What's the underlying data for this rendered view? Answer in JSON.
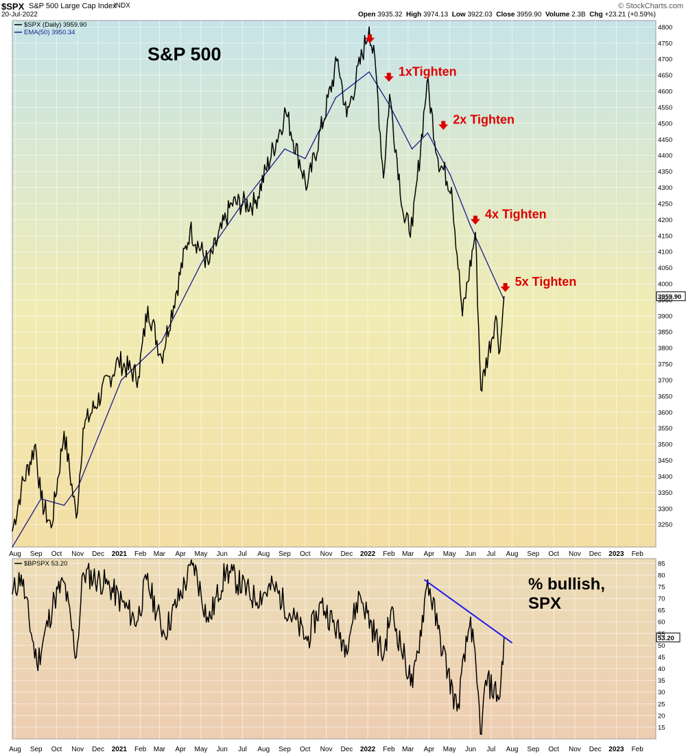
{
  "header": {
    "symbol": "$SPX",
    "name": "S&P 500 Large Cap Index",
    "exchange": "INDX",
    "brand": "© StockCharts.com",
    "date": "20-Jul-2022",
    "open_label": "Open",
    "open": "3935.32",
    "high_label": "High",
    "high": "3974.13",
    "low_label": "Low",
    "low": "3922.03",
    "close_label": "Close",
    "close": "3959.90",
    "volume_label": "Volume",
    "volume": "2.3B",
    "chg_label": "Chg",
    "chg": "+23.21 (+0.59%)"
  },
  "colors": {
    "price_line": "#000000",
    "ema_line": "#1a1a8c",
    "annotation_red": "#dd0000",
    "trend_line": "#1a1aee"
  },
  "chart_data": [
    {
      "type": "line",
      "title": "S&P 500",
      "legend": [
        "$SPX (Daily) 3959.90",
        "EMA(50) 3950.34"
      ],
      "legend_position": "top-left",
      "x_ticks": [
        "Aug",
        "Sep",
        "Oct",
        "Nov",
        "Dec",
        "2021",
        "Feb",
        "Mar",
        "Apr",
        "May",
        "Jun",
        "Jul",
        "Aug",
        "Sep",
        "Oct",
        "Nov",
        "Dec",
        "2022",
        "Feb",
        "Mar",
        "Apr",
        "May",
        "Jun",
        "Jul",
        "Aug",
        "Sep",
        "Oct",
        "Nov",
        "Dec",
        "2023",
        "Feb"
      ],
      "x_range": [
        "2020-07-28",
        "2023-02-28"
      ],
      "ylim": [
        3180,
        4820
      ],
      "y_ticks": [
        3250,
        3300,
        3350,
        3400,
        3450,
        3500,
        3550,
        3600,
        3650,
        3700,
        3750,
        3800,
        3850,
        3900,
        3950,
        4000,
        4050,
        4100,
        4150,
        4200,
        4250,
        4300,
        4350,
        4400,
        4450,
        4500,
        4550,
        4600,
        4650,
        4700,
        4750,
        4800
      ],
      "last_value_label": "3959.90",
      "series": [
        {
          "name": "$SPX (Daily)",
          "x": [
            "2020-07-28",
            "2020-08-10",
            "2020-08-31",
            "2020-09-08",
            "2020-09-23",
            "2020-10-12",
            "2020-10-30",
            "2020-11-09",
            "2020-12-31",
            "2021-01-29",
            "2021-02-12",
            "2021-03-04",
            "2021-04-15",
            "2021-05-12",
            "2021-06-15",
            "2021-07-19",
            "2021-08-31",
            "2021-09-02",
            "2021-10-04",
            "2021-11-18",
            "2021-12-01",
            "2022-01-03",
            "2022-01-13",
            "2022-01-24",
            "2022-02-02",
            "2022-02-24",
            "2022-03-08",
            "2022-03-29",
            "2022-04-14",
            "2022-05-04",
            "2022-05-20",
            "2022-06-08",
            "2022-06-16",
            "2022-07-08",
            "2022-07-14",
            "2022-07-20"
          ],
          "values": [
            3230,
            3360,
            3500,
            3330,
            3240,
            3540,
            3270,
            3550,
            3760,
            3710,
            3930,
            3770,
            4170,
            4060,
            4250,
            4250,
            4520,
            4540,
            4300,
            4700,
            4520,
            4800,
            4660,
            4330,
            4590,
            4190,
            4180,
            4630,
            4390,
            4300,
            3900,
            4160,
            3670,
            3900,
            3790,
            3960
          ]
        },
        {
          "name": "EMA(50)",
          "x": [
            "2020-07-28",
            "2020-09-08",
            "2020-10-12",
            "2020-11-02",
            "2021-01-04",
            "2021-03-04",
            "2021-05-03",
            "2021-07-01",
            "2021-09-01",
            "2021-10-01",
            "2021-11-15",
            "2022-01-03",
            "2022-02-01",
            "2022-03-07",
            "2022-03-30",
            "2022-05-02",
            "2022-06-01",
            "2022-07-20"
          ],
          "values": [
            3180,
            3330,
            3310,
            3370,
            3700,
            3820,
            4070,
            4250,
            4420,
            4390,
            4580,
            4660,
            4560,
            4420,
            4470,
            4340,
            4180,
            3950
          ]
        }
      ],
      "annotations": [
        {
          "x": "2022-01-04",
          "y": 4760,
          "text": ""
        },
        {
          "x": "2022-02-01",
          "y": 4640,
          "text": "1xTighten"
        },
        {
          "x": "2022-04-22",
          "y": 4490,
          "text": "2x Tighten"
        },
        {
          "x": "2022-06-08",
          "y": 4195,
          "text": "4x Tighten"
        },
        {
          "x": "2022-07-22",
          "y": 3985,
          "text": "5x Tighten"
        }
      ]
    },
    {
      "type": "line",
      "title": "% bullish, SPX",
      "legend": [
        "$BPSPX 53.20"
      ],
      "x_ticks": [
        "Aug",
        "Sep",
        "Oct",
        "Nov",
        "Dec",
        "2021",
        "Feb",
        "Mar",
        "Apr",
        "May",
        "Jun",
        "Jul",
        "Aug",
        "Sep",
        "Oct",
        "Nov",
        "Dec",
        "2022",
        "Feb",
        "Mar",
        "Apr",
        "May",
        "Jun",
        "Jul",
        "Aug",
        "Sep",
        "Oct",
        "Nov",
        "Dec",
        "2023",
        "Feb"
      ],
      "ylim": [
        10,
        87
      ],
      "y_ticks": [
        15,
        20,
        25,
        30,
        35,
        40,
        45,
        50,
        55,
        60,
        65,
        70,
        75,
        80,
        85
      ],
      "last_value_label": "53.20",
      "series": [
        {
          "name": "$BPSPX",
          "x": [
            "2020-07-28",
            "2020-08-10",
            "2020-09-02",
            "2020-09-28",
            "2020-10-12",
            "2020-10-30",
            "2020-11-09",
            "2020-12-15",
            "2021-01-27",
            "2021-02-10",
            "2021-03-08",
            "2021-04-20",
            "2021-05-12",
            "2021-06-07",
            "2021-07-19",
            "2021-08-16",
            "2021-10-04",
            "2021-10-25",
            "2021-11-30",
            "2021-12-20",
            "2022-01-24",
            "2022-02-04",
            "2022-03-08",
            "2022-03-30",
            "2022-04-14",
            "2022-05-12",
            "2022-06-01",
            "2022-06-17",
            "2022-06-23",
            "2022-07-14",
            "2022-07-20"
          ],
          "values": [
            72,
            80,
            42,
            70,
            77,
            45,
            81,
            76,
            60,
            78,
            55,
            85,
            60,
            82,
            70,
            75,
            52,
            68,
            50,
            72,
            45,
            65,
            32,
            78,
            57,
            22,
            62,
            12,
            35,
            28,
            53.2
          ]
        }
      ],
      "trend_line": {
        "x": [
          "2022-03-25",
          "2022-08-01"
        ],
        "y": [
          78,
          51
        ]
      }
    }
  ]
}
